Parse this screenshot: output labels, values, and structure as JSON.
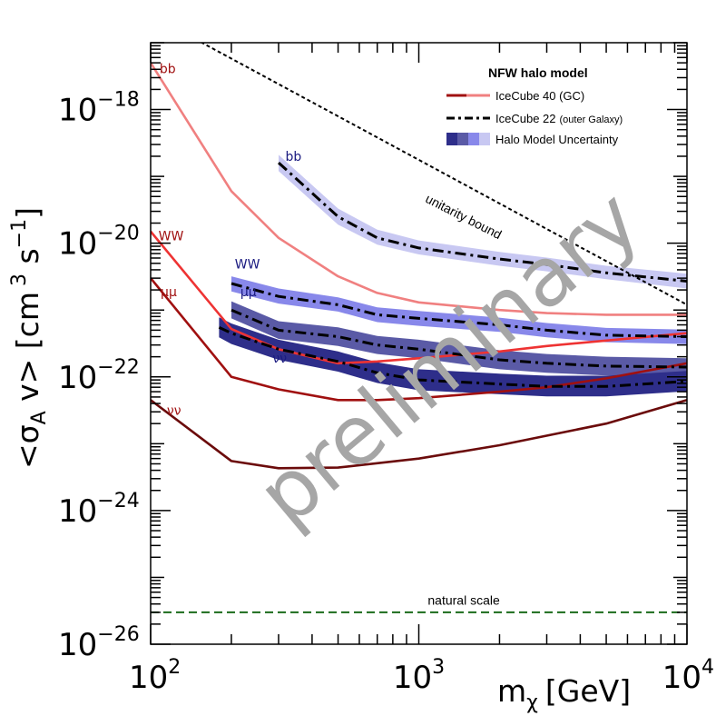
{
  "chart_data": {
    "type": "line",
    "xlabel": "m",
    "xlabel_sub": "χ",
    "xlabel_unit": "[GeV]",
    "ylabel": "<σ",
    "ylabel_sub": "A",
    "ylabel_rest": " v> [cm",
    "ylabel_sup1": "3",
    "ylabel_mid": " s",
    "ylabel_sup2": "−1",
    "ylabel_end": "]",
    "x_scale": "log",
    "y_scale": "log",
    "xlim": [
      100,
      10000
    ],
    "ylim": [
      1e-26,
      1e-17
    ],
    "x_ticks": [
      {
        "value": 100,
        "base": "10",
        "exp": "2"
      },
      {
        "value": 1000,
        "base": "10",
        "exp": "3"
      },
      {
        "value": 10000,
        "base": "10",
        "exp": "4"
      }
    ],
    "y_ticks": [
      {
        "value": 1e-18,
        "base": "10",
        "exp": "−18"
      },
      {
        "value": 1e-20,
        "base": "10",
        "exp": "−20"
      },
      {
        "value": 1e-22,
        "base": "10",
        "exp": "−22"
      },
      {
        "value": 1e-24,
        "base": "10",
        "exp": "−24"
      },
      {
        "value": 1e-26,
        "base": "10",
        "exp": "−26"
      }
    ],
    "grid": false,
    "legend": {
      "placement": "top-right",
      "title": "NFW halo model",
      "entries": [
        {
          "label": "IceCube 40 (GC)",
          "label_small": "",
          "style": "red-lines"
        },
        {
          "label": "IceCube 22",
          "label_small": "(outer Galaxy)",
          "style": "dash-dot"
        },
        {
          "label": "Halo Model Uncertainty",
          "label_small": "",
          "style": "blue-bands"
        }
      ]
    },
    "series": [
      {
        "group": "IceCube 40 (GC)",
        "name": "bb",
        "color": "#f08080",
        "x": [
          100,
          200,
          300,
          500,
          700,
          1000,
          2000,
          3000,
          5000,
          10000
        ],
        "y": [
          5e-18,
          6e-20,
          1.2e-20,
          3.2e-21,
          1.8e-21,
          1.3e-21,
          1e-21,
          9e-22,
          8.5e-22,
          8.5e-22
        ]
      },
      {
        "group": "IceCube 40 (GC)",
        "name": "WW",
        "color": "#ee3333",
        "x": [
          100,
          200,
          300,
          500,
          700,
          1000,
          2000,
          3000,
          5000,
          10000
        ],
        "y": [
          1.5e-20,
          5.2e-22,
          2.6e-22,
          1.6e-22,
          1.7e-22,
          1.9e-22,
          2.4e-22,
          2.9e-22,
          3.5e-22,
          4.5e-22
        ]
      },
      {
        "group": "IceCube 40 (GC)",
        "name": "μμ",
        "color": "#a01010",
        "x": [
          100,
          200,
          300,
          500,
          700,
          1000,
          2000,
          3000,
          5000,
          10000
        ],
        "y": [
          3e-21,
          1e-22,
          6.5e-23,
          4.5e-23,
          4.5e-23,
          4.8e-23,
          6e-23,
          7e-23,
          9.5e-23,
          1.6e-22
        ]
      },
      {
        "group": "IceCube 40 (GC)",
        "name": "νν",
        "color": "#6b0b0b",
        "x": [
          100,
          200,
          300,
          500,
          1000,
          2000,
          5000,
          10000
        ],
        "y": [
          4.5e-23,
          5.5e-24,
          4.3e-24,
          4.4e-24,
          6e-24,
          9.5e-24,
          2e-23,
          4.5e-23
        ]
      },
      {
        "group": "IceCube 22 (outer Galaxy)",
        "name": "bb",
        "color": "#000000",
        "x": [
          300,
          500,
          700,
          1000,
          2000,
          3000,
          5000,
          10000
        ],
        "y": [
          1.6e-19,
          2.5e-20,
          1.2e-20,
          8.5e-21,
          5.8e-21,
          4.8e-21,
          3.6e-21,
          2.7e-21
        ],
        "band_lo": [
          1.2e-19,
          1.9e-20,
          9.5e-21,
          6.8e-21,
          4.6e-21,
          3.8e-21,
          2.9e-21,
          2.1e-21
        ],
        "band_hi": [
          2.1e-19,
          3.3e-20,
          1.6e-20,
          1.1e-20,
          7.4e-21,
          6.1e-21,
          4.6e-21,
          3.5e-21
        ],
        "band_color": "#c8c8f2"
      },
      {
        "group": "IceCube 22 (outer Galaxy)",
        "name": "WW",
        "color": "#000000",
        "x": [
          200,
          300,
          500,
          700,
          1000,
          2000,
          3000,
          5000,
          10000
        ],
        "y": [
          2.5e-21,
          1.6e-21,
          1.2e-21,
          8.5e-22,
          7.5e-22,
          6e-22,
          5e-22,
          4.2e-22,
          4e-22
        ],
        "band_lo": [
          1.9e-21,
          1.25e-21,
          9.5e-22,
          6.6e-22,
          5.8e-22,
          4.7e-22,
          3.9e-22,
          3.3e-22,
          3.1e-22
        ],
        "band_hi": [
          3.2e-21,
          2.1e-21,
          1.55e-21,
          1.1e-21,
          9.7e-22,
          7.7e-22,
          6.4e-22,
          5.4e-22,
          5.1e-22
        ],
        "band_color": "#8888ea"
      },
      {
        "group": "IceCube 22 (outer Galaxy)",
        "name": "μμ",
        "color": "#000000",
        "x": [
          200,
          300,
          500,
          700,
          1000,
          2000,
          3000,
          5000,
          10000
        ],
        "y": [
          1e-21,
          5e-22,
          4e-22,
          3e-22,
          2.6e-22,
          1.8e-22,
          1.6e-22,
          1.45e-22,
          1.4e-22
        ],
        "band_lo": [
          7.5e-22,
          3.7e-22,
          2.9e-22,
          2.2e-22,
          1.9e-22,
          1.3e-22,
          1.15e-22,
          1.05e-22,
          1e-22
        ],
        "band_hi": [
          1.35e-21,
          6.8e-22,
          5.5e-22,
          4.1e-22,
          3.6e-22,
          2.5e-22,
          2.2e-22,
          2e-22,
          1.9e-22
        ],
        "band_color": "#5a5aa6"
      },
      {
        "group": "IceCube 22 (outer Galaxy)",
        "name": "νν",
        "color": "#000000",
        "x": [
          180,
          200,
          300,
          500,
          700,
          1000,
          2000,
          3000,
          5000,
          10000
        ],
        "y": [
          5.5e-22,
          4.5e-22,
          2.6e-22,
          1.7e-22,
          1.15e-22,
          9e-23,
          7.8e-23,
          7.2e-23,
          7.2e-23,
          8.6e-23
        ],
        "band_lo": [
          3.9e-22,
          3.1e-22,
          1.8e-22,
          1.2e-22,
          8.1e-23,
          6.3e-23,
          5.5e-23,
          5.1e-23,
          5.1e-23,
          6.1e-23
        ],
        "band_hi": [
          7.8e-22,
          6.3e-22,
          3.6e-22,
          2.4e-22,
          1.65e-22,
          1.3e-22,
          1.12e-22,
          1.04e-22,
          1.04e-22,
          1.23e-22
        ],
        "band_color": "#2e2e8a"
      }
    ],
    "reference_lines": [
      {
        "name": "unitarity bound",
        "style": "dotted",
        "color": "#000000",
        "x": [
          100,
          10000
        ],
        "y": [
          2.6e-17,
          1.2e-21
        ]
      },
      {
        "name": "natural scale",
        "style": "dashed",
        "color": "#1a6b1a",
        "x": [
          100,
          10000
        ],
        "y": [
          3e-26,
          3e-26
        ]
      }
    ],
    "curve_labels": [
      {
        "text": "bb",
        "color": "#a01010",
        "x": 108,
        "y": 3.5e-18
      },
      {
        "text": "WW",
        "color": "#a01010",
        "x": 107,
        "y": 1.1e-20
      },
      {
        "text": "μμ",
        "color": "#a01010",
        "x": 109,
        "y": 1.6e-21
      },
      {
        "text": "νν",
        "color": "#a01010",
        "x": 115,
        "y": 2.7e-23
      },
      {
        "text": "bb",
        "color": "#1a1a80",
        "x": 318,
        "y": 1.7e-19
      },
      {
        "text": "WW",
        "color": "#1a1a80",
        "x": 206,
        "y": 4.2e-21
      },
      {
        "text": "μμ",
        "color": "#1a1a80",
        "x": 216,
        "y": 1.6e-21
      },
      {
        "text": "νν",
        "color": "#1a1a80",
        "x": 285,
        "y": 1.65e-22
      }
    ],
    "annotations": [
      {
        "text": "unitarity bound",
        "x": 1050,
        "y": 4.2e-20,
        "rotate": 27
      },
      {
        "text": "natural scale",
        "x": 1080,
        "y": 3.9e-26,
        "rotate": 0
      }
    ],
    "watermark": "preliminary"
  }
}
